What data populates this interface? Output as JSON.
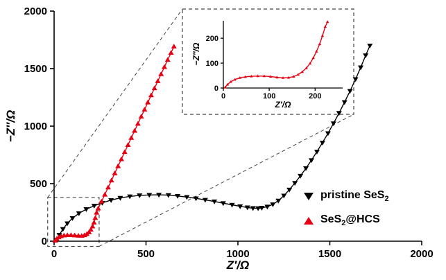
{
  "colors": {
    "background": "#ffffff",
    "axis": "#000000",
    "black_series": "#000000",
    "red_series": "#e60012",
    "dash": "#444444"
  },
  "chart_data": {
    "type": "scatter",
    "title": "",
    "xlabel": "Z′/Ω",
    "ylabel": "−Z″/Ω",
    "xlim": [
      0,
      2000
    ],
    "ylim": [
      0,
      2000
    ],
    "xticks": [
      0,
      500,
      1000,
      1500,
      2000
    ],
    "yticks": [
      0,
      500,
      1000,
      1500,
      2000
    ],
    "grid": false,
    "series": [
      {
        "name": "pristine SeS2",
        "color": "#000000",
        "marker": "triangle-down",
        "points": [
          [
            15,
            12
          ],
          [
            28,
            55
          ],
          [
            48,
            105
          ],
          [
            72,
            155
          ],
          [
            100,
            200
          ],
          [
            135,
            242
          ],
          [
            175,
            278
          ],
          [
            218,
            308
          ],
          [
            262,
            333
          ],
          [
            310,
            357
          ],
          [
            360,
            376
          ],
          [
            412,
            389
          ],
          [
            465,
            398
          ],
          [
            518,
            402
          ],
          [
            570,
            403
          ],
          [
            622,
            400
          ],
          [
            672,
            393
          ],
          [
            722,
            384
          ],
          [
            772,
            372
          ],
          [
            822,
            359
          ],
          [
            872,
            345
          ],
          [
            920,
            330
          ],
          [
            968,
            316
          ],
          [
            1012,
            303
          ],
          [
            1052,
            293
          ],
          [
            1082,
            287
          ],
          [
            1110,
            286
          ],
          [
            1130,
            290
          ],
          [
            1160,
            300
          ],
          [
            1190,
            320
          ],
          [
            1220,
            352
          ],
          [
            1250,
            396
          ],
          [
            1280,
            448
          ],
          [
            1310,
            506
          ],
          [
            1340,
            568
          ],
          [
            1370,
            634
          ],
          [
            1400,
            704
          ],
          [
            1430,
            778
          ],
          [
            1460,
            856
          ],
          [
            1490,
            938
          ],
          [
            1520,
            1024
          ],
          [
            1550,
            1114
          ],
          [
            1580,
            1208
          ],
          [
            1610,
            1306
          ],
          [
            1640,
            1408
          ],
          [
            1668,
            1510
          ],
          [
            1695,
            1615
          ],
          [
            1718,
            1700
          ]
        ]
      },
      {
        "name": "SeS2@HCS",
        "color": "#e60012",
        "marker": "triangle-up",
        "points": [
          [
            6,
            5
          ],
          [
            14,
            20
          ],
          [
            25,
            34
          ],
          [
            38,
            44
          ],
          [
            54,
            50
          ],
          [
            72,
            53
          ],
          [
            92,
            53
          ],
          [
            112,
            51
          ],
          [
            132,
            48
          ],
          [
            150,
            47
          ],
          [
            165,
            52
          ],
          [
            178,
            62
          ],
          [
            190,
            78
          ],
          [
            200,
            100
          ],
          [
            209,
            128
          ],
          [
            217,
            162
          ],
          [
            224,
            202
          ],
          [
            231,
            248
          ],
          [
            240,
            285
          ],
          [
            258,
            345
          ],
          [
            276,
            405
          ],
          [
            294,
            467
          ],
          [
            312,
            528
          ],
          [
            330,
            590
          ],
          [
            348,
            652
          ],
          [
            366,
            713
          ],
          [
            384,
            775
          ],
          [
            402,
            836
          ],
          [
            420,
            898
          ],
          [
            438,
            960
          ],
          [
            456,
            1021
          ],
          [
            474,
            1083
          ],
          [
            492,
            1144
          ],
          [
            510,
            1206
          ],
          [
            528,
            1268
          ],
          [
            546,
            1329
          ],
          [
            564,
            1391
          ],
          [
            582,
            1452
          ],
          [
            600,
            1514
          ],
          [
            618,
            1576
          ],
          [
            636,
            1637
          ],
          [
            652,
            1692
          ]
        ]
      }
    ],
    "zoom_box": {
      "x0": -35,
      "x1": 245,
      "y0": -45,
      "y1": 380
    },
    "inset": {
      "xlabel": "Z′/Ω",
      "ylabel": "−Z″/Ω",
      "xlim": [
        0,
        260
      ],
      "ylim": [
        0,
        270
      ],
      "xticks": [
        0,
        100,
        200
      ],
      "yticks": [
        0,
        100,
        200
      ],
      "series": [
        {
          "name": "SeS2@HCS",
          "color": "#e60012",
          "marker": "triangle-up",
          "points": [
            [
              4,
              3
            ],
            [
              9,
              14
            ],
            [
              16,
              25
            ],
            [
              25,
              34
            ],
            [
              36,
              41
            ],
            [
              48,
              45
            ],
            [
              61,
              47
            ],
            [
              75,
              48
            ],
            [
              89,
              48
            ],
            [
              103,
              46
            ],
            [
              117,
              43
            ],
            [
              130,
              41
            ],
            [
              142,
              42
            ],
            [
              153,
              46
            ],
            [
              163,
              54
            ],
            [
              172,
              65
            ],
            [
              181,
              80
            ],
            [
              189,
              99
            ],
            [
              196,
              121
            ],
            [
              203,
              147
            ],
            [
              210,
              177
            ],
            [
              216,
              210
            ],
            [
              222,
              246
            ],
            [
              227,
              266
            ]
          ]
        }
      ]
    },
    "legend": {
      "items": [
        {
          "prefix": "pristine SeS",
          "sub": "2",
          "suffix": "",
          "marker": "triangle-down",
          "color": "#000000"
        },
        {
          "prefix": "SeS",
          "sub": "2",
          "suffix": "@HCS",
          "marker": "triangle-up",
          "color": "#e60012"
        }
      ]
    }
  }
}
